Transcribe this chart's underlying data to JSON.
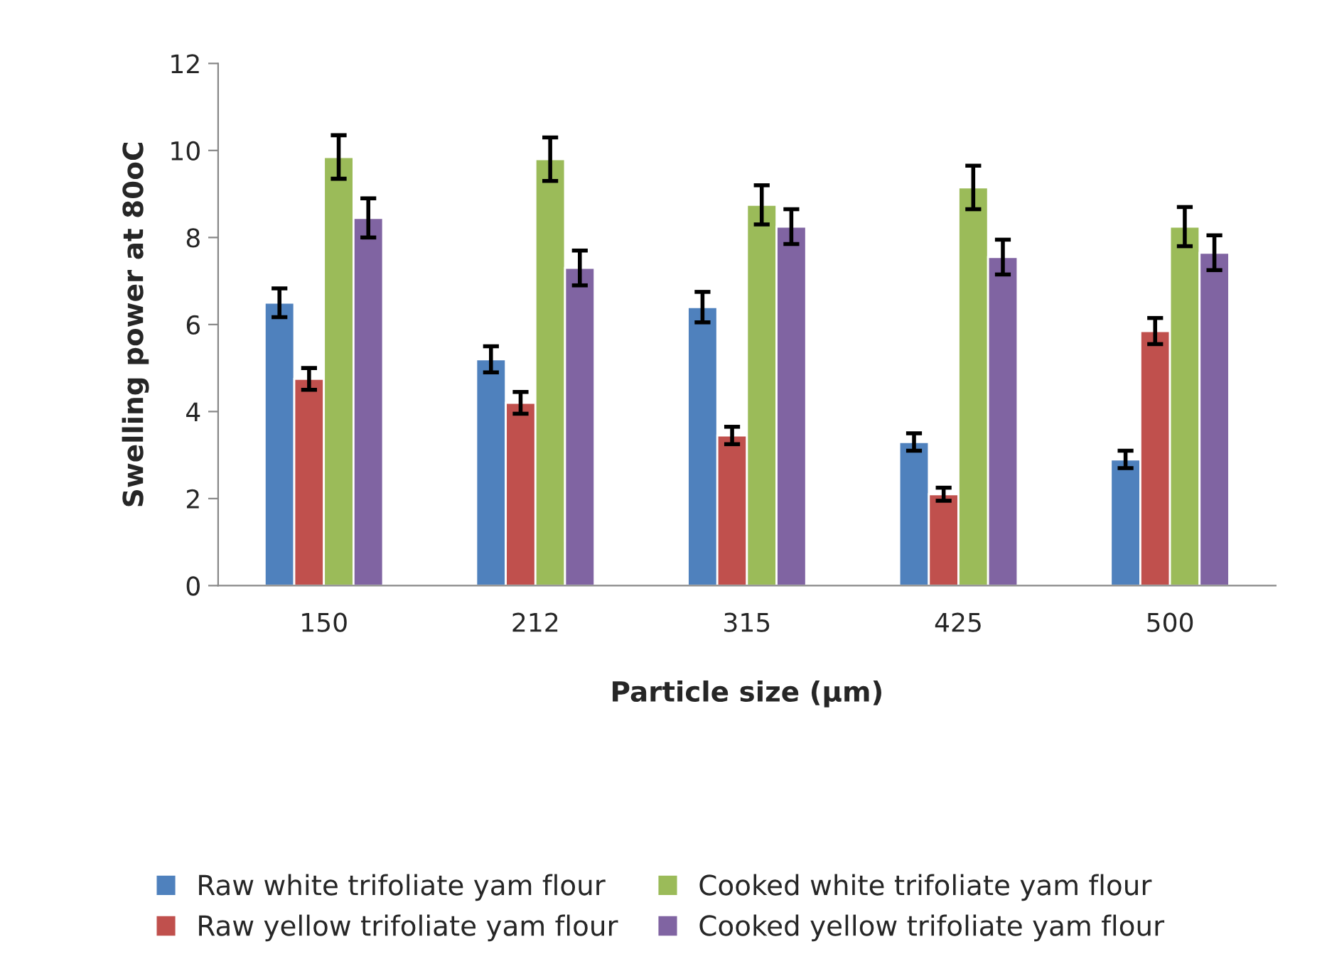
{
  "chart_data": {
    "type": "bar",
    "xlabel": "Particle size (µm)",
    "ylabel": "Swelling power at 80oC",
    "categories": [
      "150",
      "212",
      "315",
      "425",
      "500"
    ],
    "series": [
      {
        "name": "Raw white trifoliate yam flour",
        "color": "#4f81bd",
        "values": [
          6.5,
          5.2,
          6.4,
          3.3,
          2.9
        ],
        "errors": [
          0.33,
          0.3,
          0.35,
          0.2,
          0.2
        ]
      },
      {
        "name": "Raw yellow trifoliate yam flour",
        "color": "#c0504d",
        "values": [
          4.75,
          4.2,
          3.45,
          2.1,
          5.85
        ],
        "errors": [
          0.25,
          0.25,
          0.2,
          0.15,
          0.3
        ]
      },
      {
        "name": "Cooked white trifoliate yam flour",
        "color": "#9bbb59",
        "values": [
          9.85,
          9.8,
          8.75,
          9.15,
          8.25
        ],
        "errors": [
          0.5,
          0.5,
          0.45,
          0.5,
          0.45
        ]
      },
      {
        "name": "Cooked yellow trifoliate yam flour",
        "color": "#8064a2",
        "values": [
          8.45,
          7.3,
          8.25,
          7.55,
          7.65
        ],
        "errors": [
          0.45,
          0.4,
          0.4,
          0.4,
          0.4
        ]
      }
    ],
    "ylim": [
      0,
      12
    ],
    "yticks": [
      0,
      2,
      4,
      6,
      8,
      10,
      12
    ],
    "grid": false,
    "legend": "bottom"
  }
}
